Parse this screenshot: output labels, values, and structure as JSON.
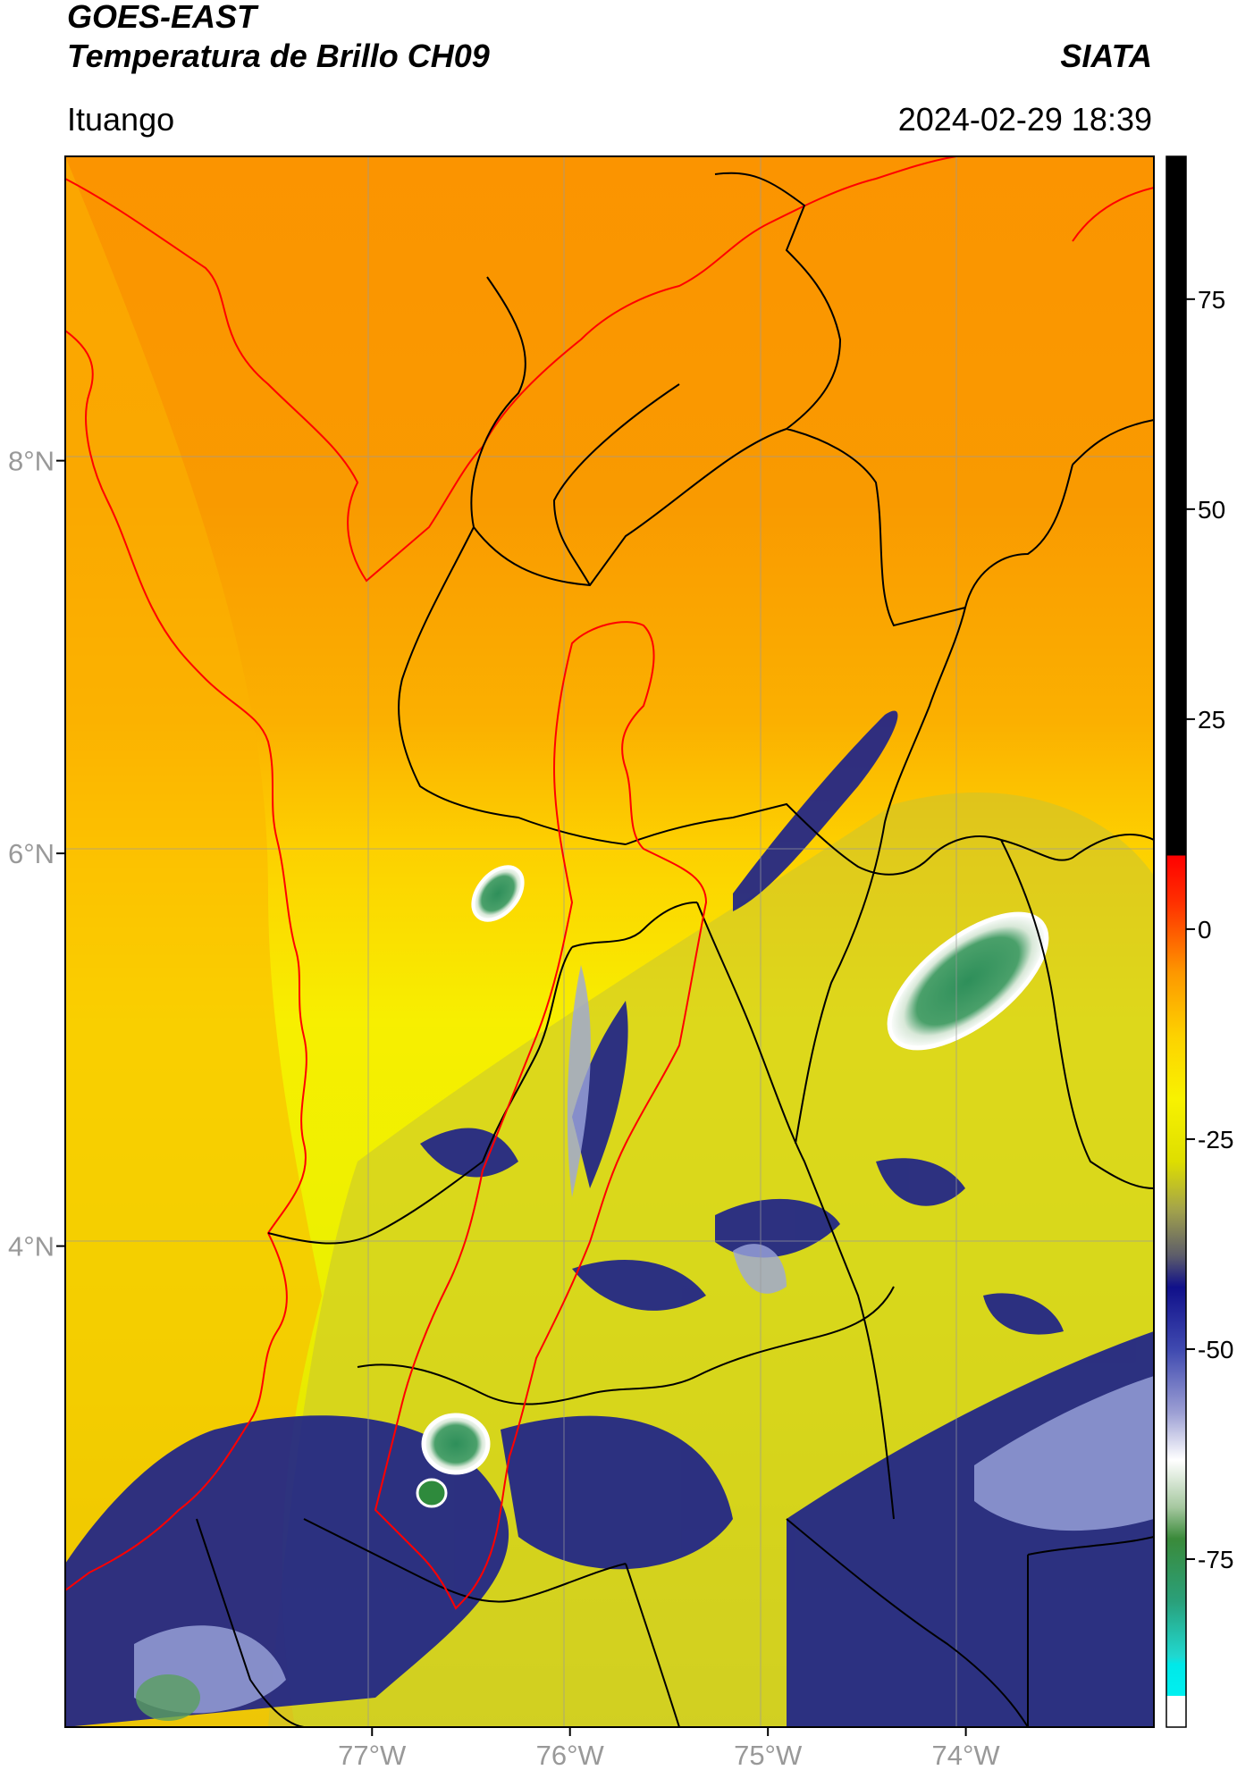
{
  "header": {
    "satellite": "GOES-EAST",
    "product": "Temperatura de Brillo CH09",
    "organization": "SIATA",
    "region": "Ituango",
    "datetime": "2024-02-29 18:39"
  },
  "map": {
    "lon_range": [
      -78.55,
      -73.05
    ],
    "lat_range": [
      1.55,
      9.55
    ],
    "x_ticks": [
      {
        "value": -77,
        "label": "77°W"
      },
      {
        "value": -76,
        "label": "76°W"
      },
      {
        "value": -75,
        "label": "75°W"
      },
      {
        "value": -74,
        "label": "74°W"
      }
    ],
    "y_ticks": [
      {
        "value": 8,
        "label": "8°N"
      },
      {
        "value": 6,
        "label": "6°N"
      },
      {
        "value": 4,
        "label": "4°N"
      }
    ],
    "grid": true,
    "features": [
      "coastline",
      "department-boundaries",
      "basin-boundary"
    ],
    "colors": {
      "coastline": "#ff0000",
      "boundaries": "#000000",
      "basin": "#ff0000"
    }
  },
  "colorbar": {
    "range": [
      -95,
      92
    ],
    "ticks": [
      {
        "value": 75,
        "label": "75"
      },
      {
        "value": 50,
        "label": "50"
      },
      {
        "value": 25,
        "label": "25"
      },
      {
        "value": 0,
        "label": "0"
      },
      {
        "value": -25,
        "label": "-25"
      },
      {
        "value": -50,
        "label": "-50"
      },
      {
        "value": -75,
        "label": "-75"
      }
    ]
  }
}
